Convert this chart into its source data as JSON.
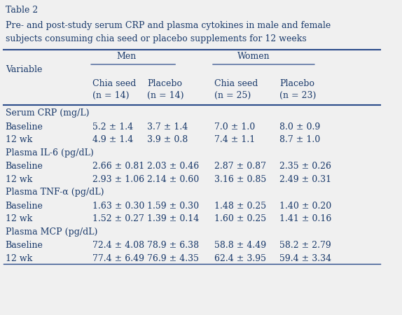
{
  "table_number": "Table 2",
  "title_line1": "Pre- and post-study serum CRP and plasma cytokines in male and female",
  "title_line2": "subjects consuming chia seed or placebo supplements for 12 weeks",
  "col_headers": [
    "Variable",
    "Chia seed\n(n = 14)",
    "Placebo\n(n = 14)",
    "Chia seed\n(n = 25)",
    "Placebo\n(n = 23)"
  ],
  "group_headers": [
    "Men",
    "Women"
  ],
  "sections": [
    {
      "section_header": "Serum CRP (mg/L)",
      "rows": [
        [
          "Baseline",
          "5.2 ± 1.4",
          "3.7 ± 1.4",
          "7.0 ± 1.0",
          "8.0 ± 0.9"
        ],
        [
          "12 wk",
          "4.9 ± 1.4",
          "3.9 ± 0.8",
          "7.4 ± 1.1",
          "8.7 ± 1.0"
        ]
      ]
    },
    {
      "section_header": "Plasma IL-6 (pg/dL)",
      "rows": [
        [
          "Baseline",
          "2.66 ± 0.81",
          "2.03 ± 0.46",
          "2.87 ± 0.87",
          "2.35 ± 0.26"
        ],
        [
          "12 wk",
          "2.93 ± 1.06",
          "2.14 ± 0.60",
          "3.16 ± 0.85",
          "2.49 ± 0.31"
        ]
      ]
    },
    {
      "section_header": "Plasma TNF-α (pg/dL)",
      "rows": [
        [
          "Baseline",
          "1.63 ± 0.30",
          "1.59 ± 0.30",
          "1.48 ± 0.25",
          "1.40 ± 0.20"
        ],
        [
          "12 wk",
          "1.52 ± 0.27",
          "1.39 ± 0.14",
          "1.60 ± 0.25",
          "1.41 ± 0.16"
        ]
      ]
    },
    {
      "section_header": "Plasma MCP (pg/dL)",
      "rows": [
        [
          "Baseline",
          "72.4 ± 4.08",
          "78.9 ± 6.38",
          "58.8 ± 4.49",
          "58.2 ± 2.79"
        ],
        [
          "12 wk",
          "77.4 ± 6.49",
          "76.9 ± 4.35",
          "62.4 ± 3.95",
          "59.4 ± 3.34"
        ]
      ]
    }
  ],
  "bg_color": "#f0f0f0",
  "table_bg": "#ffffff",
  "text_color": "#1a3a6b",
  "font_size": 9.0,
  "header_font_size": 9.0
}
